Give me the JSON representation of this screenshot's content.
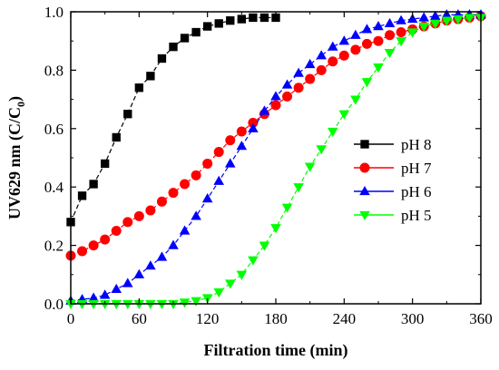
{
  "chart_data": {
    "type": "line",
    "title": "",
    "xlabel": "Filtration time (min)",
    "ylabel_main": "UV629 nm (C/C",
    "ylabel_sub": "0",
    "ylabel_tail": ")",
    "xlim": [
      0,
      360
    ],
    "ylim": [
      0,
      1.0
    ],
    "xticks": [
      0,
      60,
      120,
      180,
      240,
      300,
      360
    ],
    "yticks": [
      0.0,
      0.2,
      0.4,
      0.6,
      0.8,
      1.0
    ],
    "xtick_labels": [
      "0",
      "60",
      "120",
      "180",
      "240",
      "300",
      "360"
    ],
    "ytick_labels": [
      "0.0",
      "0.2",
      "0.4",
      "0.6",
      "0.8",
      "1.0"
    ],
    "grid": false,
    "legend_position": "right",
    "series": [
      {
        "name": "pH 8",
        "color": "#000000",
        "marker": "square",
        "x": [
          0,
          10,
          20,
          30,
          40,
          50,
          60,
          70,
          80,
          90,
          100,
          110,
          120,
          130,
          140,
          150,
          160,
          170,
          180
        ],
        "y": [
          0.28,
          0.37,
          0.41,
          0.48,
          0.57,
          0.65,
          0.74,
          0.78,
          0.84,
          0.88,
          0.91,
          0.93,
          0.95,
          0.96,
          0.97,
          0.975,
          0.98,
          0.98,
          0.98
        ]
      },
      {
        "name": "pH 7",
        "color": "#ff0000",
        "marker": "circle",
        "x": [
          0,
          10,
          20,
          30,
          40,
          50,
          60,
          70,
          80,
          90,
          100,
          110,
          120,
          130,
          140,
          150,
          160,
          170,
          180,
          190,
          200,
          210,
          220,
          230,
          240,
          250,
          260,
          270,
          280,
          290,
          300,
          310,
          320,
          330,
          340,
          350,
          360
        ],
        "y": [
          0.165,
          0.18,
          0.2,
          0.22,
          0.25,
          0.28,
          0.3,
          0.32,
          0.35,
          0.38,
          0.41,
          0.44,
          0.48,
          0.52,
          0.56,
          0.59,
          0.62,
          0.65,
          0.68,
          0.71,
          0.74,
          0.77,
          0.8,
          0.83,
          0.85,
          0.87,
          0.89,
          0.9,
          0.92,
          0.93,
          0.94,
          0.95,
          0.96,
          0.97,
          0.975,
          0.98,
          0.985
        ]
      },
      {
        "name": "pH 6",
        "color": "#0000ff",
        "marker": "triangle-up",
        "x": [
          0,
          10,
          20,
          30,
          40,
          50,
          60,
          70,
          80,
          90,
          100,
          110,
          120,
          130,
          140,
          150,
          160,
          170,
          180,
          190,
          200,
          210,
          220,
          230,
          240,
          250,
          260,
          270,
          280,
          290,
          300,
          310,
          320,
          330,
          340,
          350,
          360
        ],
        "y": [
          0.01,
          0.015,
          0.02,
          0.03,
          0.05,
          0.07,
          0.1,
          0.13,
          0.16,
          0.2,
          0.25,
          0.3,
          0.36,
          0.42,
          0.48,
          0.54,
          0.6,
          0.66,
          0.71,
          0.75,
          0.79,
          0.82,
          0.85,
          0.88,
          0.9,
          0.92,
          0.94,
          0.95,
          0.96,
          0.97,
          0.975,
          0.98,
          0.985,
          0.99,
          0.99,
          0.99,
          0.99
        ]
      },
      {
        "name": "pH 5",
        "color": "#00ff00",
        "marker": "triangle-down",
        "x": [
          0,
          10,
          20,
          30,
          40,
          50,
          60,
          70,
          80,
          90,
          100,
          110,
          120,
          130,
          140,
          150,
          160,
          170,
          180,
          190,
          200,
          210,
          220,
          230,
          240,
          250,
          260,
          270,
          280,
          290,
          300,
          310,
          320,
          330,
          340,
          350,
          360
        ],
        "y": [
          0.0,
          0.0,
          0.0,
          0.0,
          0.0,
          0.0,
          0.0,
          0.0,
          0.0,
          0.0,
          0.005,
          0.01,
          0.02,
          0.04,
          0.07,
          0.1,
          0.15,
          0.2,
          0.26,
          0.33,
          0.4,
          0.47,
          0.53,
          0.59,
          0.65,
          0.7,
          0.76,
          0.81,
          0.86,
          0.9,
          0.93,
          0.95,
          0.96,
          0.97,
          0.975,
          0.98,
          0.98
        ]
      }
    ]
  }
}
